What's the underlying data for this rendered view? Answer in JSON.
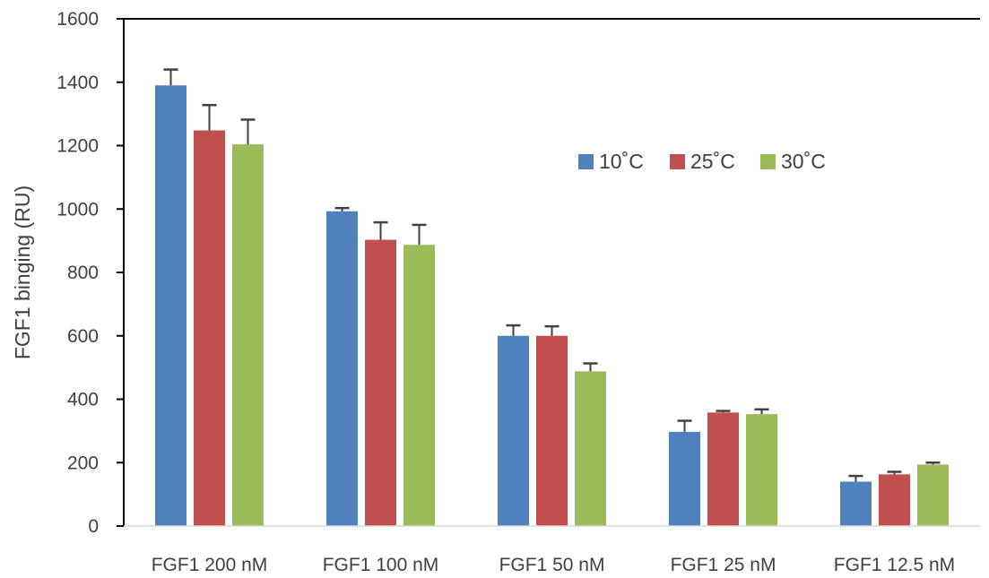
{
  "chart_data": {
    "type": "bar",
    "title": "",
    "xlabel": "",
    "ylabel": "FGF1 binging (RU)",
    "ylim": [
      0,
      1600
    ],
    "yticks": [
      0,
      200,
      400,
      600,
      800,
      1000,
      1200,
      1400,
      1600
    ],
    "grid": false,
    "legend_position": "upper-right",
    "categories": [
      "FGF1 200 nM",
      "FGF1 100 nM",
      "FGF1 50 nM",
      "FGF1 25 nM",
      "FGF1 12.5 nM"
    ],
    "series": [
      {
        "name": "10˚C",
        "color": "#4f81bd",
        "values": [
          1390,
          993,
          600,
          297,
          140
        ],
        "errors": [
          50,
          10,
          33,
          35,
          18
        ]
      },
      {
        "name": "25˚C",
        "color": "#c0504d",
        "values": [
          1248,
          903,
          600,
          358,
          163
        ],
        "errors": [
          80,
          55,
          30,
          5,
          8
        ]
      },
      {
        "name": "30˚C",
        "color": "#9bbb59",
        "values": [
          1204,
          887,
          488,
          353,
          194
        ],
        "errors": [
          78,
          63,
          25,
          15,
          6
        ]
      }
    ]
  }
}
